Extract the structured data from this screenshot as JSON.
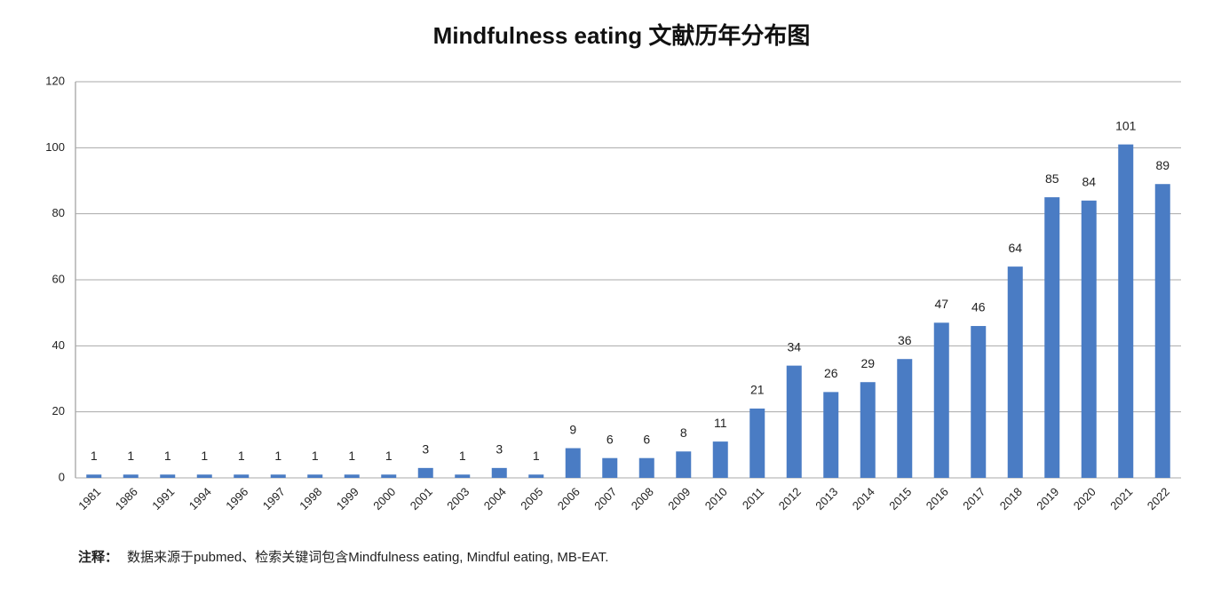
{
  "chart_data": {
    "type": "bar",
    "title": "Mindfulness eating 文献历年分布图",
    "categories": [
      "1981",
      "1986",
      "1991",
      "1994",
      "1996",
      "1997",
      "1998",
      "1999",
      "2000",
      "2001",
      "2003",
      "2004",
      "2005",
      "2006",
      "2007",
      "2008",
      "2009",
      "2010",
      "2011",
      "2012",
      "2013",
      "2014",
      "2015",
      "2016",
      "2017",
      "2018",
      "2019",
      "2020",
      "2021",
      "2022"
    ],
    "values": [
      1,
      1,
      1,
      1,
      1,
      1,
      1,
      1,
      1,
      3,
      1,
      3,
      1,
      9,
      6,
      6,
      8,
      11,
      21,
      34,
      26,
      29,
      36,
      47,
      46,
      64,
      85,
      84,
      101,
      89
    ],
    "color": "#4a7cc4",
    "ylim": [
      0,
      120
    ],
    "yticks": [
      0,
      20,
      40,
      60,
      80,
      100,
      120
    ],
    "grid": true,
    "note_label": "注释：",
    "note": "数据来源于pubmed、检索关键词包含Mindfulness eating, Mindful eating, MB-EAT."
  }
}
